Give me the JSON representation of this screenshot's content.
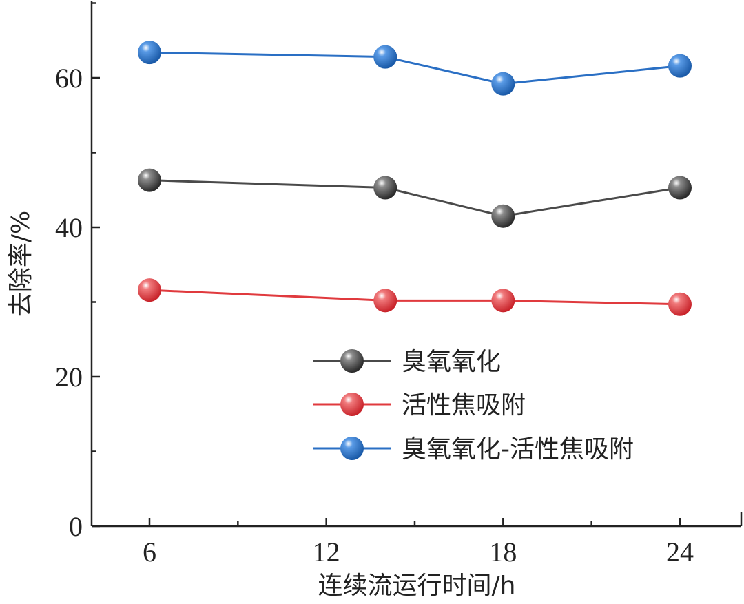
{
  "chart_data": {
    "type": "line",
    "xlabel": "连续流运行时间/h",
    "ylabel": "去除率/%",
    "x": [
      6,
      14,
      18,
      24
    ],
    "xticks": [
      6,
      12,
      18,
      24
    ],
    "xlim": [
      6,
      24
    ],
    "yticks": [
      0,
      20,
      40,
      60
    ],
    "ylim": [
      0,
      70
    ],
    "grid": false,
    "legend_position": "center-right",
    "series": [
      {
        "name": "臭氧氧化",
        "values": [
          46.3,
          45.3,
          41.5,
          45.3
        ],
        "color": "#4a4a4a"
      },
      {
        "name": "活性焦吸附",
        "values": [
          31.6,
          30.2,
          30.2,
          29.7
        ],
        "color": "#e03a3e"
      },
      {
        "name": "臭氧氧化-活性焦吸附",
        "values": [
          63.4,
          62.8,
          59.2,
          61.6
        ],
        "color": "#2a6fc4"
      }
    ]
  }
}
